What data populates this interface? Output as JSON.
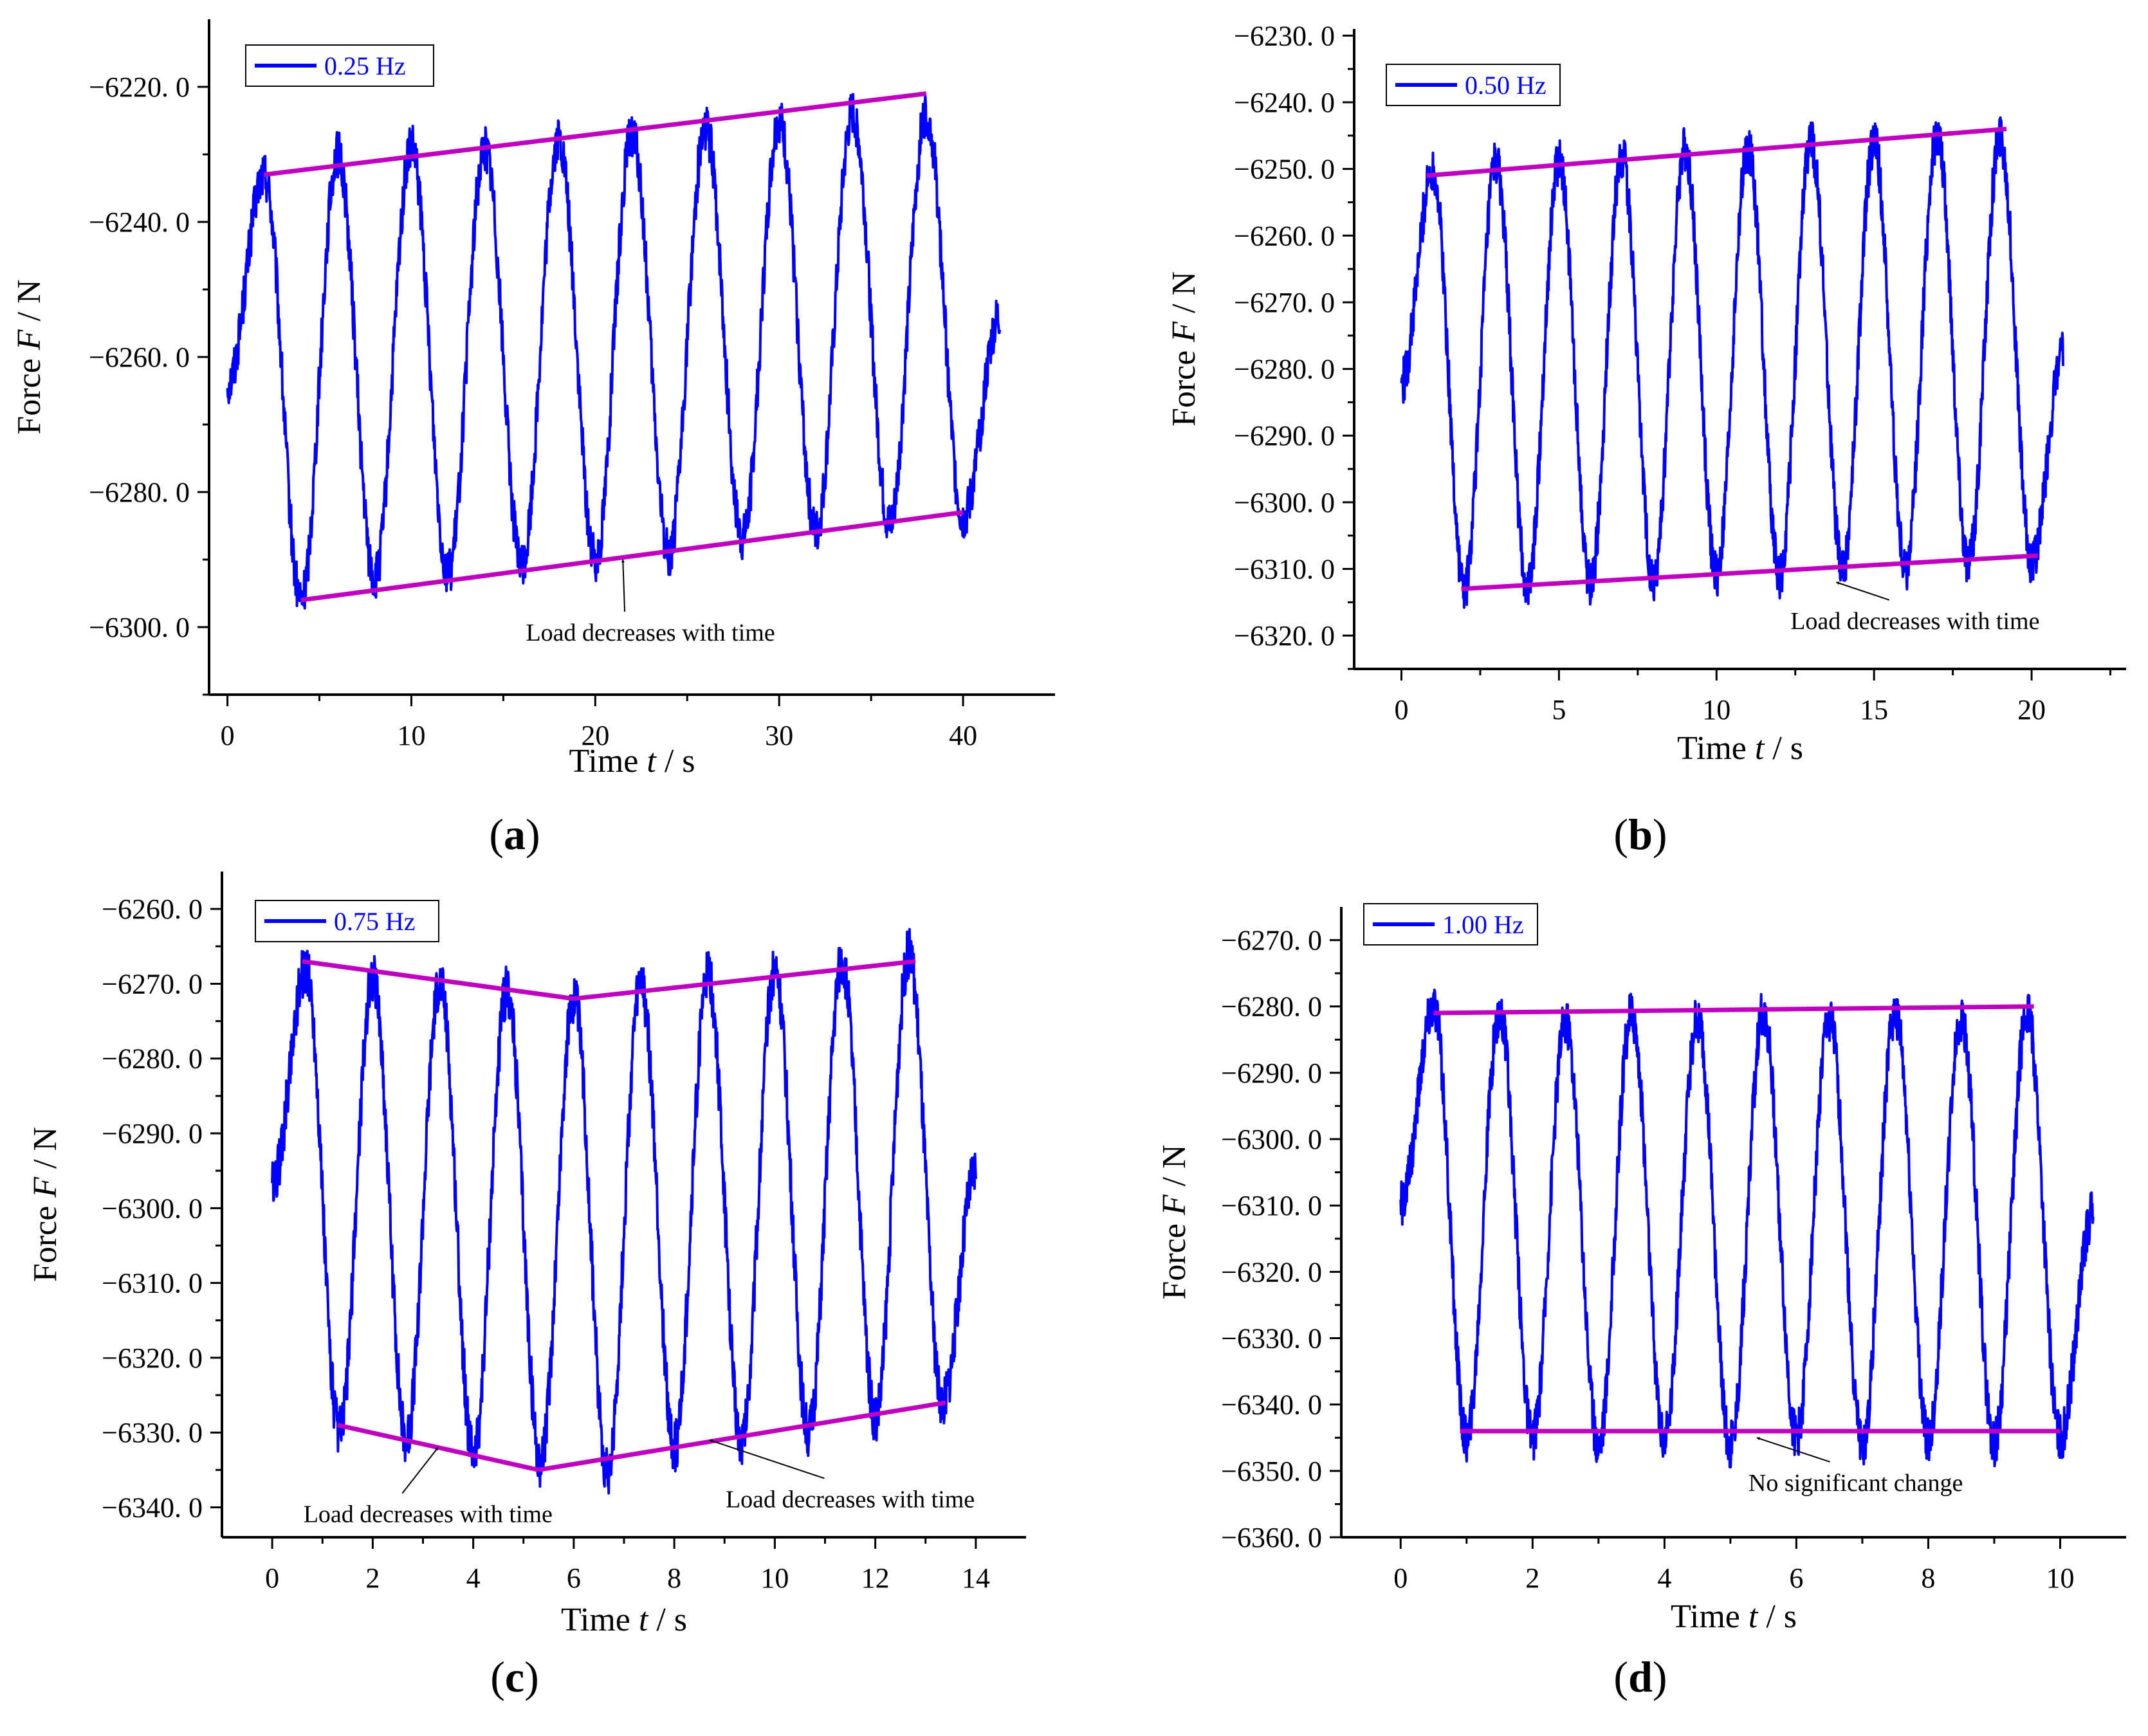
{
  "colors": {
    "signal": "#0000ff",
    "trend": "#c000c0",
    "axis": "#000000",
    "legend_text": "#0000ff"
  },
  "chart_data": [
    {
      "panel": "a",
      "panel_label": "(a)",
      "type": "line",
      "frequency_hz": 0.25,
      "legend": "0.25 Hz",
      "xlabel": {
        "prefix": "Time ",
        "var": "t",
        "suffix": " / s"
      },
      "ylabel": {
        "prefix": "Force ",
        "var": "F",
        "suffix": " / N"
      },
      "xlim": [
        -1,
        45
      ],
      "ylim": [
        -6310,
        -6210
      ],
      "xticks": [
        0,
        10,
        20,
        30,
        40
      ],
      "xtick_labels": [
        "0",
        "10",
        "20",
        "30",
        "40"
      ],
      "yticks": [
        -6220,
        -6240,
        -6260,
        -6280,
        -6300
      ],
      "ytick_labels": [
        "−6220. 0",
        "−6240. 0",
        "−6260. 0",
        "−6280. 0",
        "−6300. 0"
      ],
      "signal": {
        "t_start": 0,
        "t_end": 42,
        "first_peak_time": 2,
        "start_value": -6264,
        "end_value": -6254,
        "peaks": [
          -6233,
          -6230,
          -6229,
          -6229,
          -6228,
          -6227,
          -6226,
          -6225,
          -6224,
          -6224
        ],
        "troughs": [
          -6296,
          -6293,
          -6292,
          -6291,
          -6290,
          -6289,
          -6287,
          -6286,
          -6285,
          -6284
        ]
      },
      "trends": [
        {
          "from": [
            2,
            -6233
          ],
          "to": [
            38,
            -6221
          ]
        },
        {
          "from": [
            4,
            -6296
          ],
          "to": [
            40,
            -6283
          ]
        }
      ],
      "annotations": [
        {
          "text": "Load decreases with time",
          "text_at": [
            23,
            -6302
          ],
          "arrow_to": [
            21.5,
            -6290
          ]
        }
      ]
    },
    {
      "panel": "b",
      "panel_label": "(b)",
      "type": "line",
      "frequency_hz": 0.5,
      "legend": "0.50 Hz",
      "xlabel": {
        "prefix": "Time ",
        "var": "t",
        "suffix": " / s"
      },
      "ylabel": {
        "prefix": "Force ",
        "var": "F",
        "suffix": " / N"
      },
      "xlim": [
        -1.5,
        23
      ],
      "ylim": [
        -6325,
        -6229
      ],
      "xticks": [
        0,
        5,
        10,
        15,
        20
      ],
      "xtick_labels": [
        "0",
        "5",
        "10",
        "15",
        "20"
      ],
      "yticks": [
        -6230,
        -6240,
        -6250,
        -6260,
        -6270,
        -6280,
        -6290,
        -6300,
        -6310,
        -6320
      ],
      "ytick_labels": [
        "−6230. 0",
        "−6240. 0",
        "−6250. 0",
        "−6260. 0",
        "−6270. 0",
        "−6280. 0",
        "−6290. 0",
        "−6300. 0",
        "−6310. 0",
        "−6320. 0"
      ],
      "signal": {
        "t_start": 0,
        "t_end": 21,
        "first_peak_time": 1,
        "start_value": -6282,
        "end_value": -6278,
        "peaks": [
          -6250,
          -6249,
          -6249,
          -6248,
          -6247,
          -6247,
          -6246,
          -6246,
          -6245,
          -6245
        ],
        "troughs": [
          -6313,
          -6313,
          -6312,
          -6312,
          -6311,
          -6311,
          -6310,
          -6310,
          -6309,
          -6309
        ]
      },
      "trends": [
        {
          "from": [
            0.8,
            -6251
          ],
          "to": [
            19.2,
            -6244
          ]
        },
        {
          "from": [
            1.9,
            -6313
          ],
          "to": [
            20.2,
            -6308
          ]
        }
      ],
      "annotations": [
        {
          "text": "Load decreases with time",
          "text_at": [
            16.3,
            -6319
          ],
          "arrow_to": [
            13.8,
            -6312
          ]
        }
      ]
    },
    {
      "panel": "c",
      "panel_label": "(c)",
      "type": "line",
      "frequency_hz": 0.75,
      "legend": "0.75 Hz",
      "xlabel": {
        "prefix": "Time ",
        "var": "t",
        "suffix": " / s"
      },
      "ylabel": {
        "prefix": "Force ",
        "var": "F",
        "suffix": " / N"
      },
      "xlim": [
        -1,
        15
      ],
      "ylim": [
        -6344,
        -6255
      ],
      "xticks": [
        0,
        2,
        4,
        6,
        8,
        10,
        12,
        14
      ],
      "xtick_labels": [
        "0",
        "2",
        "4",
        "6",
        "8",
        "10",
        "12",
        "14"
      ],
      "yticks": [
        -6260,
        -6270,
        -6280,
        -6290,
        -6300,
        -6310,
        -6320,
        -6330,
        -6340
      ],
      "ytick_labels": [
        "−6260. 0",
        "−6270. 0",
        "−6280. 0",
        "−6290. 0",
        "−6300. 0",
        "−6310. 0",
        "−6320. 0",
        "−6330. 0",
        "−6340. 0"
      ],
      "signal": {
        "t_start": 0,
        "t_end": 14,
        "first_peak_time": 0.67,
        "start_value": -6297,
        "end_value": -6295,
        "peaks": [
          -6268,
          -6269,
          -6270,
          -6271,
          -6272,
          -6270,
          -6269,
          -6268,
          -6267,
          -6266
        ],
        "troughs": [
          -6330,
          -6331,
          -6333,
          -6334,
          -6335,
          -6332,
          -6331,
          -6330,
          -6328,
          -6326
        ]
      },
      "trends": [
        {
          "from": [
            0.6,
            -6267
          ],
          "to": [
            6,
            -6272
          ]
        },
        {
          "from": [
            6,
            -6272
          ],
          "to": [
            12.8,
            -6267
          ]
        },
        {
          "from": [
            1.3,
            -6329
          ],
          "to": [
            5.3,
            -6335
          ]
        },
        {
          "from": [
            5.3,
            -6335
          ],
          "to": [
            13.4,
            -6326
          ]
        }
      ],
      "annotations": [
        {
          "text": "Load decreases with time",
          "text_at": [
            3.1,
            -6342
          ],
          "arrow_to": [
            3.3,
            -6332
          ]
        },
        {
          "text": "Load decreases with time",
          "text_at": [
            11.5,
            -6340
          ],
          "arrow_to": [
            8.7,
            -6331
          ]
        }
      ]
    },
    {
      "panel": "d",
      "panel_label": "(d)",
      "type": "line",
      "frequency_hz": 1.0,
      "legend": "1.00 Hz",
      "xlabel": {
        "prefix": "Time ",
        "var": "t",
        "suffix": " / s"
      },
      "ylabel": {
        "prefix": "Force ",
        "var": "F",
        "suffix": " / N"
      },
      "xlim": [
        -0.9,
        11
      ],
      "ylim": [
        -6360,
        -6265
      ],
      "xticks": [
        0,
        2,
        4,
        6,
        8,
        10
      ],
      "xtick_labels": [
        "0",
        "2",
        "4",
        "6",
        "8",
        "10"
      ],
      "yticks": [
        -6270,
        -6280,
        -6290,
        -6300,
        -6310,
        -6320,
        -6330,
        -6340,
        -6350,
        -6360
      ],
      "ytick_labels": [
        "−6270. 0",
        "−6280. 0",
        "−6290. 0",
        "−6300. 0",
        "−6310. 0",
        "−6320. 0",
        "−6330. 0",
        "−6340. 0",
        "−6350. 0",
        "−6360. 0"
      ],
      "signal": {
        "t_start": 0,
        "t_end": 10.5,
        "first_peak_time": 0.5,
        "start_value": -6310,
        "end_value": -6311,
        "peaks": [
          -6280,
          -6281,
          -6282,
          -6281,
          -6282,
          -6281,
          -6282,
          -6281,
          -6282,
          -6281
        ],
        "troughs": [
          -6345,
          -6345,
          -6346,
          -6345,
          -6346,
          -6345,
          -6346,
          -6345,
          -6346,
          -6345
        ]
      },
      "trends": [
        {
          "from": [
            0.5,
            -6281
          ],
          "to": [
            9.6,
            -6280
          ]
        },
        {
          "from": [
            0.9,
            -6344
          ],
          "to": [
            10,
            -6344
          ]
        }
      ],
      "annotations": [
        {
          "text": "No significant change",
          "text_at": [
            6.9,
            -6353
          ],
          "arrow_to": [
            5.4,
            -6345
          ]
        }
      ]
    }
  ]
}
